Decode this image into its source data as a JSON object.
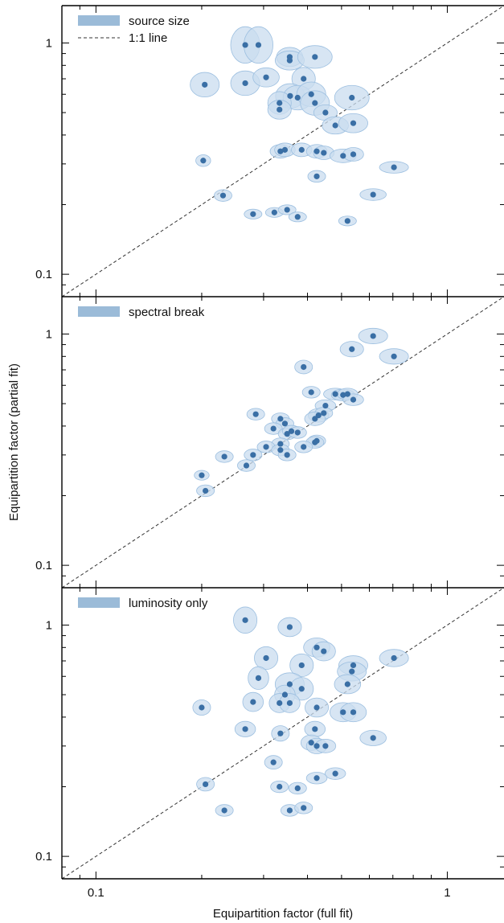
{
  "chart_data": {
    "type": "scatter",
    "xlabel": "Equipartition factor (full fit)",
    "ylabel": "Equipartition factor (partial fit)",
    "xscale": "log",
    "yscale": "log",
    "xlim": [
      0.08,
      1.45
    ],
    "ylim": [
      0.08,
      1.45
    ],
    "x_ticks": [
      0.1,
      1
    ],
    "x_tick_labels": [
      "0.1",
      "1"
    ],
    "y_ticks": [
      0.1,
      1
    ],
    "y_tick_labels": [
      "0.1",
      "1"
    ],
    "marker_color": "#3a6fa5",
    "ellipse_fill": "#c9dcef",
    "ellipse_stroke": "#9cbfe0",
    "legend_swatch_color": "#9bbbd8",
    "one_to_one_line": true,
    "panels": [
      {
        "legend_label": "source size",
        "line_legend_label": "1:1 line",
        "points": [
          {
            "x": 0.266,
            "y": 0.98,
            "ex": 1.1,
            "ey": 1.2
          },
          {
            "x": 0.29,
            "y": 0.98,
            "ex": 1.1,
            "ey": 1.2
          },
          {
            "x": 0.356,
            "y": 0.87,
            "ex": 1.09,
            "ey": 1.1
          },
          {
            "x": 0.356,
            "y": 0.84,
            "ex": 1.1,
            "ey": 1.1
          },
          {
            "x": 0.42,
            "y": 0.87,
            "ex": 1.12,
            "ey": 1.12
          },
          {
            "x": 0.204,
            "y": 0.66,
            "ex": 1.1,
            "ey": 1.13
          },
          {
            "x": 0.266,
            "y": 0.67,
            "ex": 1.1,
            "ey": 1.13
          },
          {
            "x": 0.305,
            "y": 0.71,
            "ex": 1.09,
            "ey": 1.1
          },
          {
            "x": 0.39,
            "y": 0.7,
            "ex": 1.08,
            "ey": 1.12
          },
          {
            "x": 0.357,
            "y": 0.59,
            "ex": 1.1,
            "ey": 1.13
          },
          {
            "x": 0.375,
            "y": 0.58,
            "ex": 1.1,
            "ey": 1.13
          },
          {
            "x": 0.41,
            "y": 0.6,
            "ex": 1.1,
            "ey": 1.13
          },
          {
            "x": 0.42,
            "y": 0.55,
            "ex": 1.1,
            "ey": 1.13
          },
          {
            "x": 0.333,
            "y": 0.55,
            "ex": 1.08,
            "ey": 1.12
          },
          {
            "x": 0.333,
            "y": 0.515,
            "ex": 1.08,
            "ey": 1.1
          },
          {
            "x": 0.535,
            "y": 0.58,
            "ex": 1.12,
            "ey": 1.13
          },
          {
            "x": 0.45,
            "y": 0.5,
            "ex": 1.08,
            "ey": 1.08
          },
          {
            "x": 0.48,
            "y": 0.44,
            "ex": 1.09,
            "ey": 1.09
          },
          {
            "x": 0.54,
            "y": 0.45,
            "ex": 1.1,
            "ey": 1.1
          },
          {
            "x": 0.335,
            "y": 0.34,
            "ex": 1.07,
            "ey": 1.07
          },
          {
            "x": 0.345,
            "y": 0.345,
            "ex": 1.07,
            "ey": 1.07
          },
          {
            "x": 0.385,
            "y": 0.345,
            "ex": 1.07,
            "ey": 1.07
          },
          {
            "x": 0.425,
            "y": 0.34,
            "ex": 1.07,
            "ey": 1.07
          },
          {
            "x": 0.445,
            "y": 0.335,
            "ex": 1.07,
            "ey": 1.07
          },
          {
            "x": 0.505,
            "y": 0.325,
            "ex": 1.09,
            "ey": 1.07
          },
          {
            "x": 0.54,
            "y": 0.33,
            "ex": 1.07,
            "ey": 1.07
          },
          {
            "x": 0.202,
            "y": 0.31,
            "ex": 1.05,
            "ey": 1.06
          },
          {
            "x": 0.705,
            "y": 0.29,
            "ex": 1.1,
            "ey": 1.06
          },
          {
            "x": 0.425,
            "y": 0.265,
            "ex": 1.06,
            "ey": 1.06
          },
          {
            "x": 0.23,
            "y": 0.219,
            "ex": 1.06,
            "ey": 1.06
          },
          {
            "x": 0.615,
            "y": 0.221,
            "ex": 1.09,
            "ey": 1.06
          },
          {
            "x": 0.28,
            "y": 0.182,
            "ex": 1.06,
            "ey": 1.05
          },
          {
            "x": 0.322,
            "y": 0.185,
            "ex": 1.06,
            "ey": 1.05
          },
          {
            "x": 0.35,
            "y": 0.19,
            "ex": 1.06,
            "ey": 1.05
          },
          {
            "x": 0.375,
            "y": 0.177,
            "ex": 1.06,
            "ey": 1.05
          },
          {
            "x": 0.52,
            "y": 0.17,
            "ex": 1.06,
            "ey": 1.05
          }
        ]
      },
      {
        "legend_label": "spectral break",
        "points": [
          {
            "x": 0.615,
            "y": 0.98,
            "ex": 1.1,
            "ey": 1.08
          },
          {
            "x": 0.535,
            "y": 0.86,
            "ex": 1.08,
            "ey": 1.08
          },
          {
            "x": 0.705,
            "y": 0.8,
            "ex": 1.1,
            "ey": 1.08
          },
          {
            "x": 0.39,
            "y": 0.72,
            "ex": 1.06,
            "ey": 1.07
          },
          {
            "x": 0.41,
            "y": 0.56,
            "ex": 1.06,
            "ey": 1.06
          },
          {
            "x": 0.48,
            "y": 0.55,
            "ex": 1.08,
            "ey": 1.06
          },
          {
            "x": 0.505,
            "y": 0.545,
            "ex": 1.08,
            "ey": 1.06
          },
          {
            "x": 0.52,
            "y": 0.55,
            "ex": 1.07,
            "ey": 1.06
          },
          {
            "x": 0.54,
            "y": 0.52,
            "ex": 1.07,
            "ey": 1.06
          },
          {
            "x": 0.45,
            "y": 0.49,
            "ex": 1.07,
            "ey": 1.06
          },
          {
            "x": 0.285,
            "y": 0.45,
            "ex": 1.06,
            "ey": 1.06
          },
          {
            "x": 0.43,
            "y": 0.445,
            "ex": 1.07,
            "ey": 1.07
          },
          {
            "x": 0.445,
            "y": 0.455,
            "ex": 1.06,
            "ey": 1.06
          },
          {
            "x": 0.42,
            "y": 0.43,
            "ex": 1.07,
            "ey": 1.07
          },
          {
            "x": 0.335,
            "y": 0.43,
            "ex": 1.06,
            "ey": 1.06
          },
          {
            "x": 0.345,
            "y": 0.41,
            "ex": 1.06,
            "ey": 1.06
          },
          {
            "x": 0.32,
            "y": 0.39,
            "ex": 1.06,
            "ey": 1.06
          },
          {
            "x": 0.35,
            "y": 0.37,
            "ex": 1.06,
            "ey": 1.06
          },
          {
            "x": 0.36,
            "y": 0.38,
            "ex": 1.06,
            "ey": 1.06
          },
          {
            "x": 0.375,
            "y": 0.375,
            "ex": 1.06,
            "ey": 1.06
          },
          {
            "x": 0.425,
            "y": 0.345,
            "ex": 1.06,
            "ey": 1.06
          },
          {
            "x": 0.42,
            "y": 0.34,
            "ex": 1.06,
            "ey": 1.06
          },
          {
            "x": 0.335,
            "y": 0.335,
            "ex": 1.06,
            "ey": 1.06
          },
          {
            "x": 0.305,
            "y": 0.325,
            "ex": 1.06,
            "ey": 1.06
          },
          {
            "x": 0.39,
            "y": 0.325,
            "ex": 1.06,
            "ey": 1.06
          },
          {
            "x": 0.335,
            "y": 0.315,
            "ex": 1.06,
            "ey": 1.06
          },
          {
            "x": 0.28,
            "y": 0.3,
            "ex": 1.06,
            "ey": 1.06
          },
          {
            "x": 0.35,
            "y": 0.3,
            "ex": 1.06,
            "ey": 1.06
          },
          {
            "x": 0.232,
            "y": 0.295,
            "ex": 1.06,
            "ey": 1.06
          },
          {
            "x": 0.268,
            "y": 0.27,
            "ex": 1.06,
            "ey": 1.06
          },
          {
            "x": 0.2,
            "y": 0.245,
            "ex": 1.05,
            "ey": 1.05
          },
          {
            "x": 0.205,
            "y": 0.21,
            "ex": 1.06,
            "ey": 1.06
          }
        ]
      },
      {
        "legend_label": "luminosity only",
        "points": [
          {
            "x": 0.266,
            "y": 1.05,
            "ex": 1.08,
            "ey": 1.14
          },
          {
            "x": 0.356,
            "y": 0.98,
            "ex": 1.08,
            "ey": 1.1
          },
          {
            "x": 0.425,
            "y": 0.8,
            "ex": 1.09,
            "ey": 1.1
          },
          {
            "x": 0.445,
            "y": 0.77,
            "ex": 1.08,
            "ey": 1.1
          },
          {
            "x": 0.705,
            "y": 0.72,
            "ex": 1.1,
            "ey": 1.09
          },
          {
            "x": 0.305,
            "y": 0.72,
            "ex": 1.08,
            "ey": 1.12
          },
          {
            "x": 0.385,
            "y": 0.67,
            "ex": 1.08,
            "ey": 1.12
          },
          {
            "x": 0.54,
            "y": 0.67,
            "ex": 1.1,
            "ey": 1.1
          },
          {
            "x": 0.535,
            "y": 0.63,
            "ex": 1.1,
            "ey": 1.1
          },
          {
            "x": 0.29,
            "y": 0.59,
            "ex": 1.07,
            "ey": 1.12
          },
          {
            "x": 0.356,
            "y": 0.555,
            "ex": 1.1,
            "ey": 1.12
          },
          {
            "x": 0.52,
            "y": 0.555,
            "ex": 1.09,
            "ey": 1.1
          },
          {
            "x": 0.385,
            "y": 0.53,
            "ex": 1.08,
            "ey": 1.12
          },
          {
            "x": 0.345,
            "y": 0.5,
            "ex": 1.07,
            "ey": 1.1
          },
          {
            "x": 0.28,
            "y": 0.465,
            "ex": 1.07,
            "ey": 1.1
          },
          {
            "x": 0.333,
            "y": 0.46,
            "ex": 1.07,
            "ey": 1.1
          },
          {
            "x": 0.356,
            "y": 0.46,
            "ex": 1.07,
            "ey": 1.1
          },
          {
            "x": 0.2,
            "y": 0.44,
            "ex": 1.06,
            "ey": 1.08
          },
          {
            "x": 0.425,
            "y": 0.44,
            "ex": 1.08,
            "ey": 1.1
          },
          {
            "x": 0.505,
            "y": 0.42,
            "ex": 1.09,
            "ey": 1.1
          },
          {
            "x": 0.54,
            "y": 0.42,
            "ex": 1.09,
            "ey": 1.1
          },
          {
            "x": 0.266,
            "y": 0.355,
            "ex": 1.07,
            "ey": 1.08
          },
          {
            "x": 0.42,
            "y": 0.355,
            "ex": 1.07,
            "ey": 1.08
          },
          {
            "x": 0.335,
            "y": 0.34,
            "ex": 1.06,
            "ey": 1.08
          },
          {
            "x": 0.615,
            "y": 0.325,
            "ex": 1.09,
            "ey": 1.08
          },
          {
            "x": 0.41,
            "y": 0.31,
            "ex": 1.07,
            "ey": 1.08
          },
          {
            "x": 0.425,
            "y": 0.3,
            "ex": 1.07,
            "ey": 1.08
          },
          {
            "x": 0.45,
            "y": 0.3,
            "ex": 1.07,
            "ey": 1.07
          },
          {
            "x": 0.32,
            "y": 0.255,
            "ex": 1.06,
            "ey": 1.07
          },
          {
            "x": 0.48,
            "y": 0.228,
            "ex": 1.07,
            "ey": 1.06
          },
          {
            "x": 0.425,
            "y": 0.218,
            "ex": 1.07,
            "ey": 1.06
          },
          {
            "x": 0.205,
            "y": 0.205,
            "ex": 1.06,
            "ey": 1.07
          },
          {
            "x": 0.333,
            "y": 0.2,
            "ex": 1.06,
            "ey": 1.06
          },
          {
            "x": 0.375,
            "y": 0.197,
            "ex": 1.06,
            "ey": 1.06
          },
          {
            "x": 0.232,
            "y": 0.158,
            "ex": 1.06,
            "ey": 1.06
          },
          {
            "x": 0.356,
            "y": 0.158,
            "ex": 1.06,
            "ey": 1.06
          },
          {
            "x": 0.39,
            "y": 0.162,
            "ex": 1.06,
            "ey": 1.06
          }
        ]
      }
    ]
  }
}
